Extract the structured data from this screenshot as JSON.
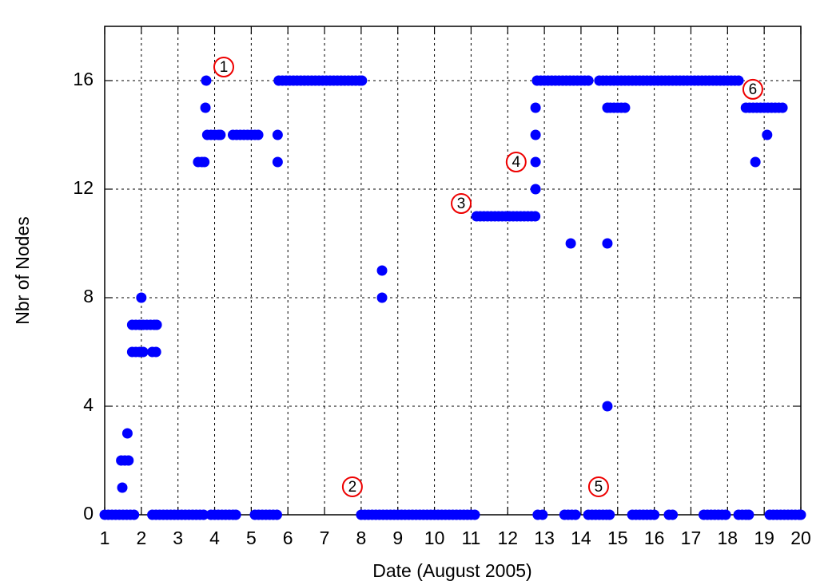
{
  "chart_data": {
    "type": "scatter",
    "xlabel": "Date (August 2005)",
    "ylabel": "Nbr of Nodes",
    "color": "#0000ff",
    "grid": true,
    "xlim": [
      1,
      20
    ],
    "ylim": [
      0,
      18
    ],
    "xticks": [
      1,
      2,
      3,
      4,
      5,
      6,
      7,
      8,
      9,
      10,
      11,
      12,
      13,
      14,
      15,
      16,
      17,
      18,
      19,
      20
    ],
    "yticks": [
      0,
      4,
      8,
      12,
      16
    ],
    "x": [
      1.0,
      1.1,
      1.2,
      1.3,
      1.4,
      1.5,
      1.6,
      1.7,
      1.8,
      1.48,
      1.45,
      1.55,
      1.65,
      1.62,
      1.75,
      1.85,
      1.95,
      2.05,
      1.75,
      1.85,
      1.95,
      2.05,
      2.15,
      2.25,
      2.35,
      2.42,
      2.0,
      2.3,
      2.4,
      2.3,
      2.4,
      2.5,
      2.6,
      2.7,
      2.8,
      2.9,
      3.0,
      3.1,
      3.2,
      3.3,
      3.4,
      3.5,
      3.6,
      3.7,
      3.55,
      3.65,
      3.72,
      3.75,
      3.77,
      3.8,
      3.9,
      4.0,
      4.1,
      4.16,
      3.9,
      4.0,
      4.1,
      4.2,
      4.3,
      4.4,
      4.5,
      4.58,
      4.5,
      4.6,
      4.7,
      4.8,
      4.9,
      5.0,
      5.1,
      5.19,
      5.1,
      5.2,
      5.3,
      5.4,
      5.5,
      5.6,
      5.7,
      5.72,
      5.72,
      5.75,
      5.85,
      5.95,
      6.05,
      6.15,
      6.25,
      6.35,
      6.45,
      6.55,
      6.65,
      6.75,
      6.85,
      6.95,
      7.05,
      7.15,
      7.25,
      7.35,
      7.45,
      7.55,
      7.65,
      7.75,
      7.85,
      7.95,
      8.02,
      8.0,
      8.1,
      8.2,
      8.3,
      8.4,
      8.5,
      8.6,
      8.7,
      8.8,
      8.9,
      9.0,
      9.1,
      9.2,
      9.3,
      9.4,
      9.5,
      9.6,
      9.7,
      9.8,
      9.9,
      10.0,
      10.1,
      10.2,
      10.3,
      10.4,
      10.5,
      10.6,
      10.7,
      10.8,
      10.9,
      11.0,
      11.1,
      8.57,
      8.57,
      11.15,
      11.25,
      11.35,
      11.45,
      11.55,
      11.65,
      11.75,
      11.85,
      11.95,
      12.05,
      12.15,
      12.25,
      12.35,
      12.45,
      12.55,
      12.65,
      12.75,
      12.76,
      12.76,
      12.76,
      12.76,
      12.8,
      12.9,
      13.0,
      13.1,
      13.2,
      13.3,
      13.4,
      13.5,
      13.6,
      13.7,
      13.8,
      13.9,
      14.0,
      14.1,
      14.2,
      12.82,
      12.95,
      13.72,
      13.55,
      13.65,
      13.75,
      13.85,
      14.2,
      14.3,
      14.4,
      14.5,
      14.6,
      14.7,
      14.78,
      14.72,
      14.72,
      14.72,
      14.5,
      14.6,
      14.7,
      14.8,
      14.9,
      15.0,
      15.1,
      15.2,
      15.3,
      15.4,
      15.5,
      15.6,
      15.7,
      15.8,
      15.9,
      16.0,
      16.1,
      16.2,
      16.3,
      16.4,
      16.5,
      16.6,
      16.7,
      16.8,
      16.9,
      17.0,
      17.1,
      17.2,
      17.3,
      17.4,
      17.5,
      17.6,
      17.7,
      17.8,
      17.9,
      18.0,
      18.1,
      18.2,
      18.3,
      14.8,
      14.9,
      15.0,
      15.1,
      15.2,
      15.4,
      15.5,
      15.6,
      15.7,
      15.8,
      15.9,
      16.0,
      16.4,
      16.5,
      17.35,
      17.45,
      17.55,
      17.65,
      17.75,
      17.85,
      17.95,
      18.3,
      18.4,
      18.5,
      18.58,
      18.5,
      18.6,
      18.7,
      18.8,
      18.9,
      19.0,
      19.1,
      19.2,
      19.3,
      19.4,
      19.5,
      18.76,
      19.08,
      19.15,
      19.25,
      19.35,
      19.45,
      19.55,
      19.65,
      19.75,
      19.85,
      19.95,
      20.0
    ],
    "values": [
      0,
      0,
      0,
      0,
      0,
      0,
      0,
      0,
      0,
      1,
      2,
      2,
      2,
      3,
      6,
      6,
      6,
      6,
      7,
      7,
      7,
      7,
      7,
      7,
      7,
      7,
      8,
      6,
      6,
      0,
      0,
      0,
      0,
      0,
      0,
      0,
      0,
      0,
      0,
      0,
      0,
      0,
      0,
      0,
      13,
      13,
      13,
      15,
      16,
      14,
      14,
      14,
      14,
      14,
      0,
      0,
      0,
      0,
      0,
      0,
      0,
      0,
      14,
      14,
      14,
      14,
      14,
      14,
      14,
      14,
      0,
      0,
      0,
      0,
      0,
      0,
      0,
      14,
      13,
      16,
      16,
      16,
      16,
      16,
      16,
      16,
      16,
      16,
      16,
      16,
      16,
      16,
      16,
      16,
      16,
      16,
      16,
      16,
      16,
      16,
      16,
      16,
      16,
      0,
      0,
      0,
      0,
      0,
      0,
      0,
      0,
      0,
      0,
      0,
      0,
      0,
      0,
      0,
      0,
      0,
      0,
      0,
      0,
      0,
      0,
      0,
      0,
      0,
      0,
      0,
      0,
      0,
      0,
      0,
      0,
      8,
      9,
      11,
      11,
      11,
      11,
      11,
      11,
      11,
      11,
      11,
      11,
      11,
      11,
      11,
      11,
      11,
      11,
      11,
      12,
      13,
      14,
      15,
      16,
      16,
      16,
      16,
      16,
      16,
      16,
      16,
      16,
      16,
      16,
      16,
      16,
      16,
      16,
      0,
      0,
      10,
      0,
      0,
      0,
      0,
      0,
      0,
      0,
      0,
      0,
      0,
      0,
      4,
      10,
      15,
      16,
      16,
      16,
      16,
      16,
      16,
      16,
      16,
      16,
      16,
      16,
      16,
      16,
      16,
      16,
      16,
      16,
      16,
      16,
      16,
      16,
      16,
      16,
      16,
      16,
      16,
      16,
      16,
      16,
      16,
      16,
      16,
      16,
      16,
      16,
      16,
      16,
      16,
      16,
      15,
      15,
      15,
      15,
      15,
      0,
      0,
      0,
      0,
      0,
      0,
      0,
      0,
      0,
      0,
      0,
      0,
      0,
      0,
      0,
      0,
      0,
      0,
      0,
      0,
      15,
      15,
      15,
      15,
      15,
      15,
      15,
      15,
      15,
      15,
      15,
      13,
      14,
      0,
      0,
      0,
      0,
      0,
      0,
      0,
      0,
      0,
      0
    ],
    "annotations": [
      {
        "text": "1",
        "x": 4.25,
        "y": 16.5
      },
      {
        "text": "2",
        "x": 7.76,
        "y": 1.03
      },
      {
        "text": "3",
        "x": 10.73,
        "y": 11.47
      },
      {
        "text": "4",
        "x": 12.23,
        "y": 13
      },
      {
        "text": "5",
        "x": 14.48,
        "y": 1.03
      },
      {
        "text": "6",
        "x": 18.69,
        "y": 15.68
      }
    ]
  }
}
